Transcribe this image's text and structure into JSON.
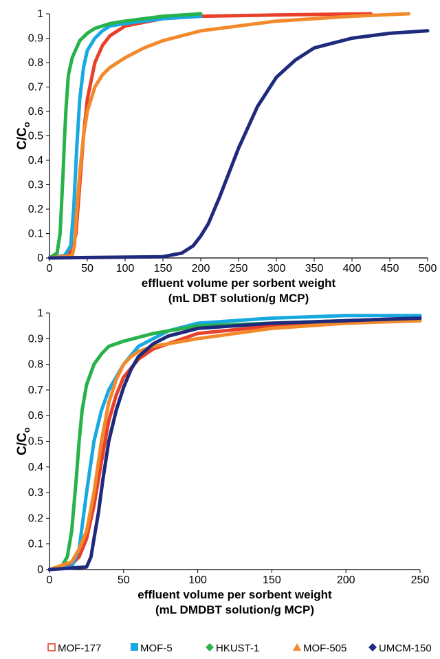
{
  "colors": {
    "MOF-177": "#e8402a",
    "MOF-5": "#18a9e1",
    "HKUST-1": "#27b24a",
    "MOF-505": "#f28a2c",
    "UMCM-150": "#1f2a7c"
  },
  "legend": [
    {
      "name": "MOF-177",
      "marker": "square-open"
    },
    {
      "name": "MOF-5",
      "marker": "square"
    },
    {
      "name": "HKUST-1",
      "marker": "diamond"
    },
    {
      "name": "MOF-505",
      "marker": "triangle"
    },
    {
      "name": "UMCM-150",
      "marker": "diamond"
    }
  ],
  "chart_data": [
    {
      "type": "line",
      "title": "",
      "xlabel": "effluent volume per sorbent weight",
      "xlabel2": "(mL DBT solution/g MCP)",
      "ylabel": "C/C",
      "ylabel_sub": "o",
      "xlim": [
        0,
        500
      ],
      "ylim": [
        0,
        1
      ],
      "xticks": [
        "0",
        "50",
        "100",
        "150",
        "200",
        "250",
        "300",
        "350",
        "400",
        "450",
        "500"
      ],
      "yticks": [
        "0",
        "0.1",
        "0.2",
        "0.3",
        "0.4",
        "0.5",
        "0.6",
        "0.7",
        "0.8",
        "0.9",
        "1"
      ],
      "grid": false,
      "series": [
        {
          "name": "MOF-177",
          "x": [
            0,
            20,
            30,
            35,
            40,
            45,
            50,
            60,
            70,
            80,
            100,
            150,
            200,
            300,
            425
          ],
          "y": [
            0,
            0.01,
            0.03,
            0.1,
            0.3,
            0.5,
            0.65,
            0.8,
            0.87,
            0.91,
            0.95,
            0.98,
            0.99,
            0.995,
            1.0
          ]
        },
        {
          "name": "MOF-5",
          "x": [
            0,
            20,
            28,
            32,
            36,
            40,
            45,
            50,
            60,
            70,
            80,
            100,
            150,
            200
          ],
          "y": [
            0,
            0.01,
            0.05,
            0.2,
            0.45,
            0.65,
            0.78,
            0.85,
            0.9,
            0.93,
            0.95,
            0.96,
            0.98,
            0.99
          ]
        },
        {
          "name": "HKUST-1",
          "x": [
            0,
            10,
            14,
            18,
            20,
            22,
            25,
            30,
            40,
            50,
            60,
            80,
            100,
            150,
            200
          ],
          "y": [
            0,
            0.02,
            0.1,
            0.35,
            0.5,
            0.62,
            0.75,
            0.82,
            0.89,
            0.92,
            0.94,
            0.96,
            0.97,
            0.99,
            1.0
          ]
        },
        {
          "name": "MOF-505",
          "x": [
            0,
            30,
            33,
            35,
            40,
            45,
            50,
            60,
            70,
            80,
            100,
            125,
            150,
            200,
            300,
            400,
            475
          ],
          "y": [
            0,
            0.01,
            0.05,
            0.15,
            0.35,
            0.5,
            0.6,
            0.7,
            0.75,
            0.78,
            0.82,
            0.86,
            0.89,
            0.93,
            0.97,
            0.99,
            1.0
          ]
        },
        {
          "name": "UMCM-150",
          "x": [
            0,
            150,
            175,
            190,
            200,
            210,
            225,
            250,
            275,
            300,
            325,
            350,
            375,
            400,
            450,
            500
          ],
          "y": [
            0,
            0.005,
            0.02,
            0.05,
            0.09,
            0.14,
            0.25,
            0.45,
            0.62,
            0.74,
            0.81,
            0.86,
            0.88,
            0.9,
            0.92,
            0.93
          ]
        }
      ]
    },
    {
      "type": "line",
      "title": "",
      "xlabel": "effluent volume per sorbent weight",
      "xlabel2": "(mL DMDBT solution/g MCP)",
      "ylabel": "C/C",
      "ylabel_sub": "o",
      "xlim": [
        0,
        250
      ],
      "ylim": [
        0,
        1
      ],
      "xticks": [
        "0",
        "50",
        "100",
        "150",
        "200",
        "250"
      ],
      "yticks": [
        "0",
        "0.1",
        "0.2",
        "0.3",
        "0.4",
        "0.5",
        "0.6",
        "0.7",
        "0.8",
        "0.9",
        "1"
      ],
      "grid": false,
      "series": [
        {
          "name": "MOF-177",
          "x": [
            0,
            15,
            20,
            25,
            30,
            35,
            40,
            45,
            50,
            60,
            70,
            80,
            100,
            150,
            200,
            250
          ],
          "y": [
            0,
            0.02,
            0.05,
            0.12,
            0.25,
            0.42,
            0.58,
            0.68,
            0.75,
            0.82,
            0.86,
            0.88,
            0.92,
            0.95,
            0.97,
            0.98
          ]
        },
        {
          "name": "MOF-5",
          "x": [
            0,
            15,
            20,
            25,
            30,
            35,
            40,
            50,
            60,
            70,
            80,
            100,
            150,
            200,
            250
          ],
          "y": [
            0,
            0.01,
            0.08,
            0.3,
            0.5,
            0.62,
            0.7,
            0.8,
            0.87,
            0.9,
            0.93,
            0.96,
            0.98,
            0.99,
            0.99
          ]
        },
        {
          "name": "HKUST-1",
          "x": [
            0,
            8,
            12,
            15,
            18,
            20,
            22,
            25,
            30,
            35,
            40,
            50,
            70,
            100,
            150,
            200,
            250
          ],
          "y": [
            0,
            0.01,
            0.05,
            0.15,
            0.35,
            0.5,
            0.62,
            0.72,
            0.8,
            0.84,
            0.87,
            0.89,
            0.92,
            0.95,
            0.96,
            0.97,
            0.97
          ]
        },
        {
          "name": "MOF-505",
          "x": [
            0,
            15,
            20,
            25,
            30,
            35,
            40,
            45,
            50,
            55,
            60,
            70,
            80,
            100,
            150,
            200,
            250
          ],
          "y": [
            0,
            0.03,
            0.08,
            0.15,
            0.3,
            0.5,
            0.65,
            0.74,
            0.8,
            0.83,
            0.85,
            0.87,
            0.88,
            0.9,
            0.94,
            0.96,
            0.97
          ]
        },
        {
          "name": "UMCM-150",
          "x": [
            0,
            25,
            28,
            30,
            33,
            36,
            40,
            45,
            50,
            55,
            60,
            70,
            80,
            100,
            150,
            200,
            250
          ],
          "y": [
            0,
            0.01,
            0.05,
            0.12,
            0.22,
            0.35,
            0.5,
            0.62,
            0.71,
            0.78,
            0.83,
            0.88,
            0.91,
            0.94,
            0.96,
            0.97,
            0.98
          ]
        }
      ]
    }
  ]
}
